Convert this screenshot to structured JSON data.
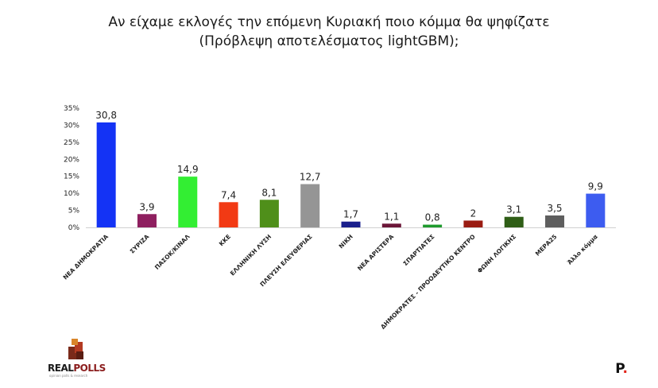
{
  "header": {
    "title_line1": "Αν είχαμε εκλογές την επόμενη Κυριακή ποιο κόμμα θα ψηφίζατε",
    "title_line2": "(Πρόβλεψη αποτελέσματος lightGBM);"
  },
  "branding": {
    "left_logo_part1": "REAL",
    "left_logo_part2": "POLLS",
    "left_logo_tagline": "opinion polls & research",
    "right_logo_letter": "P",
    "right_logo_dot": "."
  },
  "chart_data": {
    "type": "bar",
    "title": "Αν είχαμε εκλογές την επόμενη Κυριακή ποιο κόμμα θα ψηφίζατε (Πρόβλεψη αποτελέσματος lightGBM);",
    "xlabel": "",
    "ylabel": "",
    "ylim": [
      0,
      35
    ],
    "yticks": [
      "0%",
      "5%",
      "10%",
      "15%",
      "20%",
      "25%",
      "30%",
      "35%"
    ],
    "grid": false,
    "legend": "none",
    "categories": [
      "ΝΕΑ ΔΗΜΟΚΡΑΤΙΑ",
      "ΣΥΡΙΖΑ",
      "ΠΑΣΟΚ/ΚΙΝΑΛ",
      "ΚΚΕ",
      "ΕΛΛΗΝΙΚΗ ΛΥΣΗ",
      "ΠΛΕΥΣΗ ΕΛΕΥΘΕΡΙΑΣ",
      "ΝΙΚΗ",
      "ΝΕΑ ΑΡΙΣΤΕΡΑ",
      "ΣΠΑΡΤΙΑΤΕΣ",
      "ΔΗΜΟΚΡΑΤΕΣ - ΠΡΟΟΔΕΥΤΙΚΟ ΚΕΝΤΡΟ",
      "ΦΩΝΗ ΛΟΓΙΚΗΣ",
      "ΜΕΡΑ25",
      "Άλλο κόμμα"
    ],
    "values": [
      30.8,
      3.9,
      14.9,
      7.4,
      8.1,
      12.7,
      1.7,
      1.1,
      0.8,
      2,
      3.1,
      3.5,
      9.9
    ],
    "value_labels": [
      "30,8",
      "3,9",
      "14,9",
      "7,4",
      "8,1",
      "12,7",
      "1,7",
      "1,1",
      "0,8",
      "2",
      "3,1",
      "3,5",
      "9,9"
    ],
    "colors": [
      "#1433f5",
      "#8e1f5f",
      "#33ee33",
      "#f23a14",
      "#4f8f1a",
      "#959595",
      "#1a1f8c",
      "#6b1638",
      "#1e9a2d",
      "#9a1c12",
      "#2f5e16",
      "#5e5e5e",
      "#3d5cf0"
    ]
  }
}
